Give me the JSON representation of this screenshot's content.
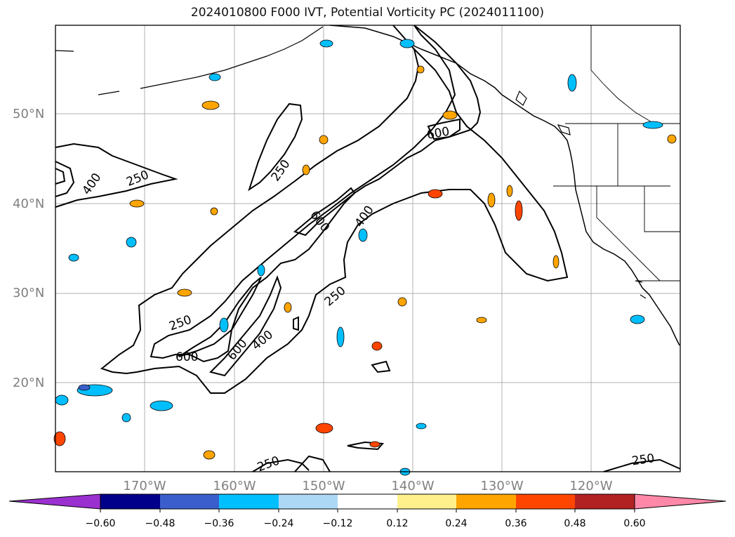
{
  "title": "2024010800 F000 IVT, Potential Vorticity PC (2024011100)",
  "lat_labels": [
    "50°N",
    "40°N",
    "30°N",
    "20°N"
  ],
  "lon_labels": [
    "170°W",
    "160°W",
    "150°W",
    "140°W",
    "130°W",
    "120°W"
  ],
  "contour_labels": [
    "250",
    "400",
    "600"
  ],
  "colorbar": {
    "ticks": [
      "−0.60",
      "−0.48",
      "−0.36",
      "−0.24",
      "−0.12",
      "0.12",
      "0.24",
      "0.36",
      "0.48",
      "0.60"
    ],
    "colors": [
      "#9b30d0",
      "#00008b",
      "#3a5fcd",
      "#00bfff",
      "#add8f5",
      "#ffffff",
      "#fff08c",
      "#ffa500",
      "#ff4500",
      "#b22222",
      "#ff88a8"
    ]
  }
}
